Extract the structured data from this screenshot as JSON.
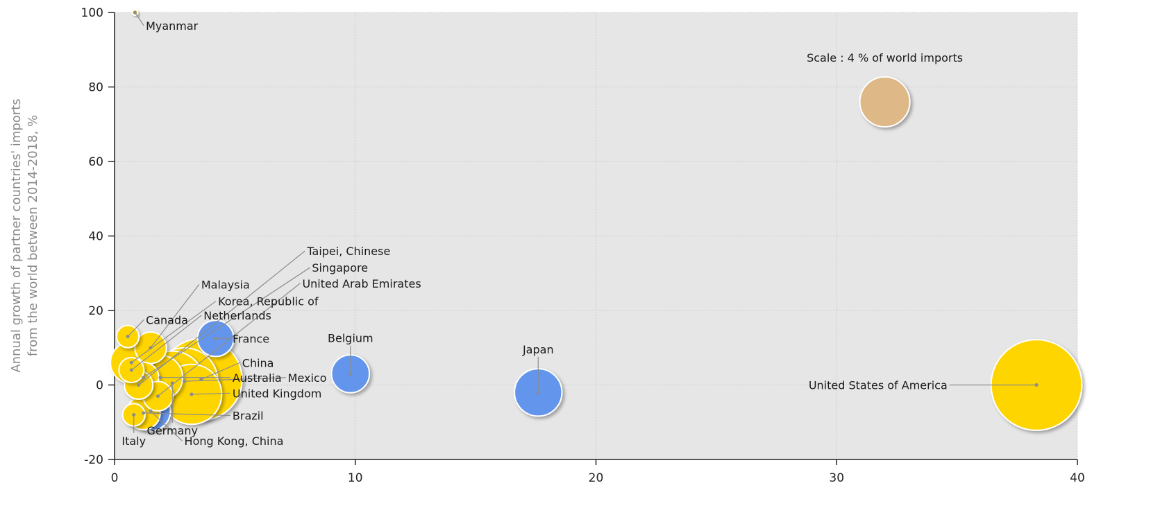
{
  "chart_data": {
    "type": "scatter",
    "title": "",
    "xlabel": "",
    "ylabel_lines": [
      "Annual growth of partner countries' imports",
      "from the world between 2014-2018, %"
    ],
    "xlim": [
      0,
      40
    ],
    "ylim": [
      -20,
      100
    ],
    "xticks": [
      0,
      10,
      20,
      30,
      40
    ],
    "yticks": [
      -20,
      0,
      20,
      40,
      60,
      80,
      100
    ],
    "grid": true,
    "colors": {
      "plot_background": "#e6e6e6",
      "yellow": "#ffd500",
      "blue": "#6495ed",
      "scale": "#deb887",
      "grid": "#cccccc",
      "leader": "#8c8c8c"
    },
    "scale_reference": {
      "text": "Scale : 4 % of world imports",
      "x": 32.0,
      "y": 76,
      "share_pct": 4
    },
    "points": [
      {
        "name": "United States of America",
        "x": 38.3,
        "y": 0.0,
        "share_pct": 13.2,
        "color": "yellow",
        "label_x": 34.6,
        "label_y": 0.0
      },
      {
        "name": "Japan",
        "x": 17.6,
        "y": -2.0,
        "share_pct": 3.6,
        "color": "blue",
        "label_x": 17.6,
        "label_y": 8.5
      },
      {
        "name": "Belgium",
        "x": 9.8,
        "y": 3.0,
        "share_pct": 2.3,
        "color": "blue",
        "label_x": 9.8,
        "label_y": 11.5
      },
      {
        "name": "France",
        "x": 4.2,
        "y": 12.5,
        "share_pct": 2.1,
        "color": "blue",
        "label_x": 4.9,
        "label_y": 12.5
      },
      {
        "name": "Hong Kong, China",
        "x": 1.5,
        "y": -7.0,
        "share_pct": 2.5,
        "color": "blue",
        "label_x": 2.9,
        "label_y": -15.0
      },
      {
        "name": "China",
        "x": 3.6,
        "y": 1.5,
        "share_pct": 10.7,
        "color": "yellow",
        "label_x": 5.3,
        "label_y": 6.0
      },
      {
        "name": "Mexico",
        "x": 2.9,
        "y": 1.0,
        "share_pct": 7.2,
        "color": "yellow",
        "label_x": 7.2,
        "label_y": 2.0
      },
      {
        "name": "Germany",
        "x": 2.4,
        "y": 0.5,
        "share_pct": 6.6,
        "color": "yellow",
        "label_x": 2.4,
        "label_y": -10.7
      },
      {
        "name": "United Kingdom",
        "x": 3.2,
        "y": -2.5,
        "share_pct": 5.8,
        "color": "yellow",
        "label_x": 4.9,
        "label_y": -2.2
      },
      {
        "name": "Australia",
        "x": 1.9,
        "y": 2.0,
        "share_pct": 3.2,
        "color": "yellow",
        "label_x": 4.9,
        "label_y": 2.0
      },
      {
        "name": "Brazil",
        "x": 1.2,
        "y": -7.5,
        "share_pct": 1.8,
        "color": "yellow",
        "label_x": 4.9,
        "label_y": -8.2
      },
      {
        "name": "Italy",
        "x": 0.8,
        "y": -8.0,
        "share_pct": 0.8,
        "color": "yellow",
        "label_x": 0.8,
        "label_y": -13.5
      },
      {
        "name": "Canada",
        "x": 0.55,
        "y": 13.0,
        "share_pct": 0.8,
        "color": "yellow",
        "label_x": 1.3,
        "label_y": 17.5
      },
      {
        "name": "Malaysia",
        "x": 1.5,
        "y": 10.0,
        "share_pct": 1.6,
        "color": "yellow",
        "label_x": 3.6,
        "label_y": 27.0
      },
      {
        "name": "Korea, Republic of",
        "x": 0.7,
        "y": 6.0,
        "share_pct": 2.8,
        "color": "yellow",
        "label_x": 4.3,
        "label_y": 22.5
      },
      {
        "name": "Netherlands",
        "x": 0.7,
        "y": 4.0,
        "share_pct": 1.0,
        "color": "yellow",
        "label_x": 3.7,
        "label_y": 18.7
      },
      {
        "name": "Taipei, Chinese",
        "x": 1.0,
        "y": 0.0,
        "share_pct": 1.3,
        "color": "yellow",
        "label_x": 8.0,
        "label_y": 36.0
      },
      {
        "name": "Singapore",
        "x": 1.2,
        "y": 2.0,
        "share_pct": 1.5,
        "color": "yellow",
        "label_x": 8.2,
        "label_y": 31.5
      },
      {
        "name": "United Arab Emirates",
        "x": 1.8,
        "y": -3.0,
        "share_pct": 1.4,
        "color": "yellow",
        "label_x": 7.8,
        "label_y": 27.3
      },
      {
        "name": "Myanmar",
        "x": 0.85,
        "y": 100.0,
        "share_pct": 0.05,
        "color": "yellow",
        "label_x": 1.3,
        "label_y": 96.5
      }
    ]
  }
}
